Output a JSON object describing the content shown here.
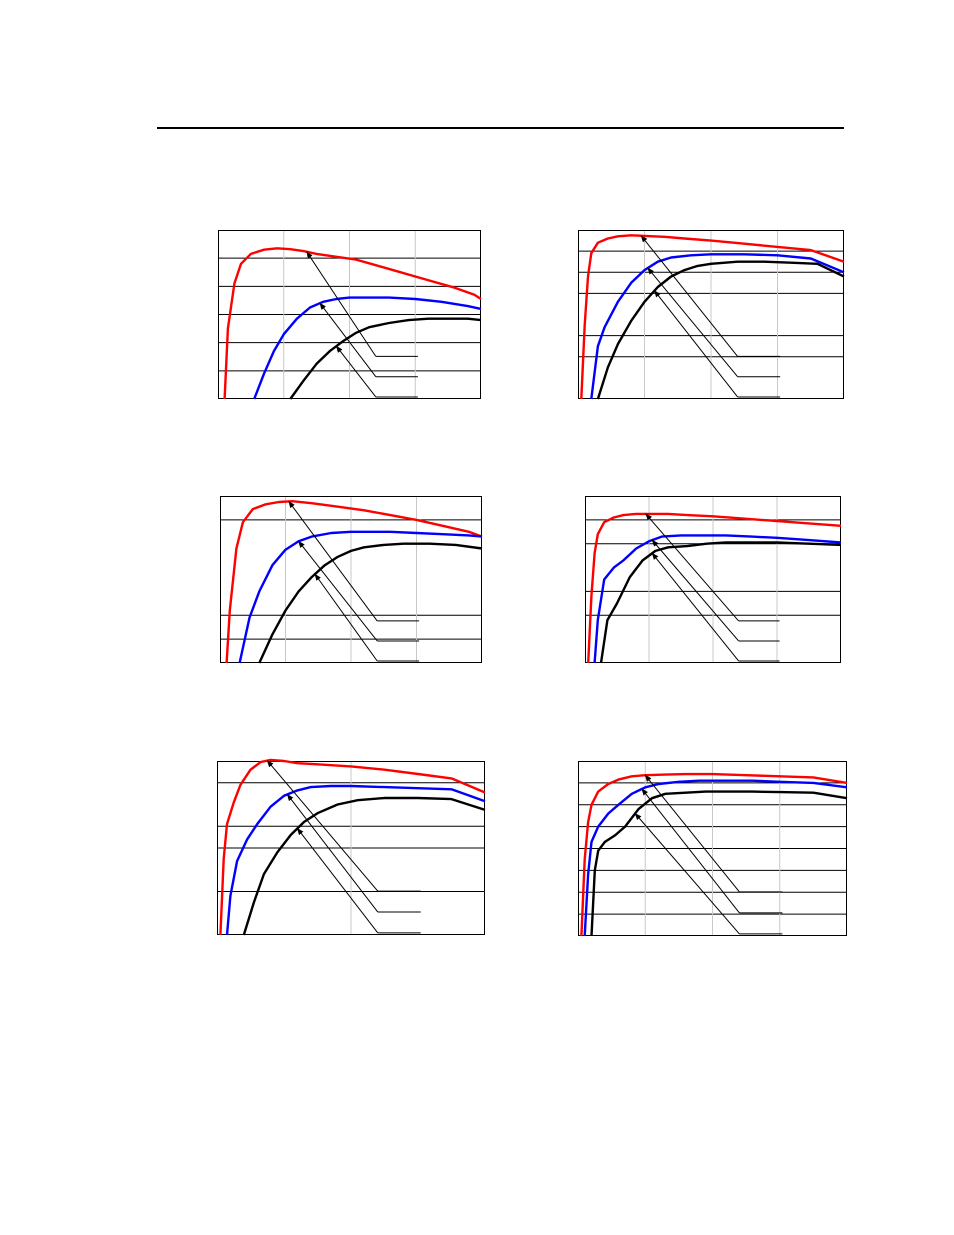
{
  "page": {
    "header_rule": true
  },
  "colors": {
    "series_a": "#ff0000",
    "series_b": "#0000ff",
    "series_c": "#000000",
    "grid": "#000000",
    "frame": "#000000"
  },
  "chart_data": [
    {
      "type": "line",
      "title": "",
      "xlabel": "",
      "ylabel": "",
      "xlim": [
        0,
        4
      ],
      "ylim": [
        0,
        6
      ],
      "h_grid": [
        1,
        2,
        3,
        4,
        5
      ],
      "v_grid": [
        1,
        2,
        3
      ],
      "series": [
        {
          "color": "#ff0000",
          "x": [
            0.1,
            0.15,
            0.25,
            0.35,
            0.5,
            0.7,
            0.9,
            1.1,
            1.3,
            1.5,
            1.8,
            2.1,
            2.4,
            2.7,
            3.0,
            3.3,
            3.6,
            3.9,
            4.0
          ],
          "y": [
            0,
            2.5,
            4.1,
            4.8,
            5.15,
            5.3,
            5.35,
            5.32,
            5.25,
            5.15,
            5.05,
            4.95,
            4.75,
            4.55,
            4.35,
            4.15,
            3.95,
            3.7,
            3.55
          ]
        },
        {
          "color": "#0000ff",
          "x": [
            0.55,
            0.7,
            0.85,
            1.0,
            1.2,
            1.4,
            1.6,
            1.8,
            2.0,
            2.2,
            2.6,
            3.0,
            3.4,
            3.8,
            4.0
          ],
          "y": [
            0,
            0.9,
            1.7,
            2.3,
            2.85,
            3.25,
            3.45,
            3.55,
            3.6,
            3.6,
            3.6,
            3.55,
            3.45,
            3.3,
            3.2
          ]
        },
        {
          "color": "#000000",
          "x": [
            1.1,
            1.3,
            1.5,
            1.7,
            1.9,
            2.1,
            2.3,
            2.6,
            2.9,
            3.2,
            3.5,
            3.8,
            4.0
          ],
          "y": [
            0,
            0.65,
            1.25,
            1.7,
            2.05,
            2.35,
            2.55,
            2.7,
            2.8,
            2.85,
            2.85,
            2.85,
            2.8
          ]
        }
      ],
      "arrows": [
        {
          "series": 0,
          "x": 1.35
        },
        {
          "series": 1,
          "x": 1.55
        },
        {
          "series": 2,
          "x": 1.8
        }
      ],
      "callout_lines": 3
    },
    {
      "type": "line",
      "title": "",
      "xlabel": "",
      "ylabel": "",
      "xlim": [
        0,
        4
      ],
      "ylim": [
        0,
        8
      ],
      "h_grid": [
        2,
        3,
        5,
        6,
        7
      ],
      "v_grid": [
        1,
        2,
        3
      ],
      "series": [
        {
          "color": "#ff0000",
          "x": [
            0.05,
            0.1,
            0.15,
            0.2,
            0.3,
            0.45,
            0.6,
            0.8,
            1.0,
            1.3,
            1.6,
            2.0,
            2.5,
            3.0,
            3.5,
            4.0
          ],
          "y": [
            0,
            3.5,
            5.8,
            6.9,
            7.4,
            7.6,
            7.7,
            7.75,
            7.72,
            7.68,
            7.6,
            7.5,
            7.35,
            7.2,
            7.05,
            6.5
          ]
        },
        {
          "color": "#0000ff",
          "x": [
            0.2,
            0.3,
            0.4,
            0.6,
            0.8,
            1.0,
            1.2,
            1.4,
            1.7,
            2.0,
            2.5,
            3.0,
            3.5,
            4.0
          ],
          "y": [
            0,
            2.5,
            3.4,
            4.6,
            5.5,
            6.1,
            6.5,
            6.7,
            6.8,
            6.85,
            6.85,
            6.8,
            6.65,
            6.0
          ]
        },
        {
          "color": "#000000",
          "x": [
            0.3,
            0.45,
            0.6,
            0.8,
            1.0,
            1.2,
            1.4,
            1.6,
            1.8,
            2.0,
            2.4,
            2.8,
            3.2,
            3.6,
            4.0
          ],
          "y": [
            0,
            1.5,
            2.6,
            3.7,
            4.6,
            5.3,
            5.8,
            6.1,
            6.3,
            6.4,
            6.5,
            6.5,
            6.45,
            6.4,
            5.8
          ]
        }
      ],
      "arrows": [
        {
          "series": 0,
          "x": 0.95
        },
        {
          "series": 1,
          "x": 1.05
        },
        {
          "series": 2,
          "x": 1.15
        }
      ],
      "callout_lines": 3
    },
    {
      "type": "line",
      "title": "",
      "xlabel": "",
      "ylabel": "",
      "xlim": [
        0,
        4
      ],
      "ylim": [
        0,
        7
      ],
      "h_grid": [
        1,
        2,
        6
      ],
      "v_grid": [
        1,
        2,
        3
      ],
      "series": [
        {
          "color": "#ff0000",
          "x": [
            0.1,
            0.15,
            0.25,
            0.35,
            0.5,
            0.7,
            0.9,
            1.1,
            1.4,
            1.8,
            2.2,
            2.6,
            3.0,
            3.4,
            3.8,
            4.0
          ],
          "y": [
            0,
            2.2,
            4.8,
            5.9,
            6.45,
            6.65,
            6.75,
            6.78,
            6.7,
            6.55,
            6.4,
            6.2,
            6.0,
            5.75,
            5.5,
            5.3
          ]
        },
        {
          "color": "#0000ff",
          "x": [
            0.3,
            0.45,
            0.6,
            0.8,
            1.0,
            1.2,
            1.4,
            1.7,
            2.0,
            2.3,
            2.6,
            3.0,
            3.4,
            3.8,
            4.0
          ],
          "y": [
            0,
            1.9,
            3.0,
            4.1,
            4.75,
            5.1,
            5.3,
            5.45,
            5.5,
            5.5,
            5.5,
            5.45,
            5.4,
            5.35,
            5.3
          ]
        },
        {
          "color": "#000000",
          "x": [
            0.6,
            0.8,
            1.0,
            1.2,
            1.4,
            1.6,
            1.8,
            2.0,
            2.2,
            2.5,
            2.8,
            3.2,
            3.6,
            4.0
          ],
          "y": [
            0,
            1.2,
            2.2,
            3.0,
            3.6,
            4.1,
            4.45,
            4.7,
            4.85,
            4.95,
            5.0,
            5.0,
            4.95,
            4.8
          ]
        }
      ],
      "arrows": [
        {
          "series": 0,
          "x": 1.05
        },
        {
          "series": 1,
          "x": 1.2
        },
        {
          "series": 2,
          "x": 1.45
        }
      ],
      "callout_lines": 4
    },
    {
      "type": "line",
      "title": "",
      "xlabel": "",
      "ylabel": "",
      "xlim": [
        0,
        4
      ],
      "ylim": [
        0,
        7
      ],
      "h_grid": [
        2,
        3,
        5,
        6
      ],
      "v_grid": [
        1,
        2,
        3
      ],
      "series": [
        {
          "color": "#ff0000",
          "x": [
            0.05,
            0.1,
            0.15,
            0.2,
            0.3,
            0.45,
            0.6,
            0.8,
            1.0,
            1.3,
            1.6,
            2.0,
            2.5,
            3.0,
            3.5,
            4.0
          ],
          "y": [
            0,
            2.8,
            4.6,
            5.4,
            5.9,
            6.1,
            6.2,
            6.25,
            6.25,
            6.25,
            6.2,
            6.15,
            6.05,
            5.95,
            5.85,
            5.75
          ]
        },
        {
          "color": "#0000ff",
          "x": [
            0.15,
            0.2,
            0.3,
            0.45,
            0.6,
            0.8,
            1.0,
            1.2,
            1.5,
            1.8,
            2.2,
            2.6,
            3.0,
            3.5,
            4.0
          ],
          "y": [
            0,
            1.8,
            3.5,
            4.0,
            4.3,
            4.8,
            5.1,
            5.3,
            5.35,
            5.35,
            5.35,
            5.3,
            5.25,
            5.15,
            5.05
          ]
        },
        {
          "color": "#000000",
          "x": [
            0.25,
            0.35,
            0.5,
            0.7,
            0.9,
            1.1,
            1.3,
            1.6,
            1.9,
            2.2,
            2.6,
            3.0,
            3.5,
            4.0
          ],
          "y": [
            0,
            1.8,
            2.5,
            3.6,
            4.3,
            4.7,
            4.85,
            4.9,
            5.0,
            5.05,
            5.05,
            5.05,
            5.0,
            4.95
          ]
        }
      ],
      "arrows": [
        {
          "series": 0,
          "x": 0.95
        },
        {
          "series": 1,
          "x": 1.05
        },
        {
          "series": 2,
          "x": 1.05
        }
      ],
      "callout_lines": 3
    },
    {
      "type": "line",
      "title": "",
      "xlabel": "",
      "ylabel": "",
      "xlim": [
        0,
        4
      ],
      "ylim": [
        0,
        8
      ],
      "h_grid": [
        2,
        4,
        5,
        7
      ],
      "v_grid": [
        2
      ],
      "series": [
        {
          "color": "#ff0000",
          "x": [
            0.05,
            0.1,
            0.15,
            0.25,
            0.35,
            0.5,
            0.65,
            0.8,
            1.0,
            1.2,
            1.5,
            2.0,
            2.5,
            3.0,
            3.5,
            4.0
          ],
          "y": [
            0,
            3.5,
            5.1,
            6.1,
            6.9,
            7.6,
            7.95,
            8.05,
            8.0,
            7.9,
            7.85,
            7.75,
            7.6,
            7.4,
            7.2,
            6.55
          ]
        },
        {
          "color": "#0000ff",
          "x": [
            0.15,
            0.2,
            0.3,
            0.45,
            0.6,
            0.8,
            1.0,
            1.2,
            1.4,
            1.7,
            2.0,
            2.5,
            3.0,
            3.5,
            4.0
          ],
          "y": [
            0,
            1.8,
            3.4,
            4.4,
            5.1,
            5.9,
            6.4,
            6.65,
            6.8,
            6.85,
            6.85,
            6.8,
            6.75,
            6.7,
            6.15
          ]
        },
        {
          "color": "#000000",
          "x": [
            0.4,
            0.55,
            0.7,
            0.9,
            1.1,
            1.3,
            1.5,
            1.8,
            2.1,
            2.5,
            3.0,
            3.5,
            4.0
          ],
          "y": [
            0,
            1.5,
            2.8,
            3.8,
            4.6,
            5.2,
            5.6,
            6.0,
            6.2,
            6.3,
            6.3,
            6.25,
            5.75
          ]
        }
      ],
      "arrows": [
        {
          "series": 0,
          "x": 0.75
        },
        {
          "series": 1,
          "x": 1.05
        },
        {
          "series": 2,
          "x": 1.2
        }
      ],
      "callout_lines": 3
    },
    {
      "type": "line",
      "title": "",
      "xlabel": "",
      "ylabel": "",
      "xlim": [
        0,
        4
      ],
      "ylim": [
        0,
        8
      ],
      "h_grid": [
        1,
        2,
        3,
        4,
        5,
        6,
        7
      ],
      "v_grid": [
        1,
        2,
        3
      ],
      "series": [
        {
          "color": "#ff0000",
          "x": [
            0.05,
            0.1,
            0.15,
            0.2,
            0.3,
            0.45,
            0.6,
            0.8,
            1.0,
            1.3,
            1.6,
            2.0,
            2.5,
            3.0,
            3.5,
            4.0
          ],
          "y": [
            0,
            3.5,
            5.2,
            6.0,
            6.6,
            6.95,
            7.15,
            7.3,
            7.35,
            7.38,
            7.4,
            7.4,
            7.35,
            7.3,
            7.25,
            7.0
          ]
        },
        {
          "color": "#0000ff",
          "x": [
            0.1,
            0.15,
            0.2,
            0.3,
            0.45,
            0.6,
            0.8,
            1.0,
            1.2,
            1.5,
            1.8,
            2.2,
            2.6,
            3.0,
            3.5,
            4.0
          ],
          "y": [
            0,
            2.8,
            4.3,
            5.0,
            5.6,
            6.0,
            6.5,
            6.8,
            6.95,
            7.05,
            7.1,
            7.1,
            7.1,
            7.05,
            7.0,
            6.8
          ]
        },
        {
          "color": "#000000",
          "x": [
            0.2,
            0.25,
            0.3,
            0.4,
            0.55,
            0.7,
            0.9,
            1.1,
            1.3,
            1.6,
            1.9,
            2.2,
            2.6,
            3.0,
            3.5,
            4.0
          ],
          "y": [
            0,
            3.0,
            3.9,
            4.3,
            4.6,
            5.0,
            5.8,
            6.3,
            6.5,
            6.55,
            6.6,
            6.6,
            6.6,
            6.58,
            6.55,
            6.3
          ]
        }
      ],
      "arrows": [
        {
          "series": 0,
          "x": 1.0
        },
        {
          "series": 1,
          "x": 0.95
        },
        {
          "series": 2,
          "x": 0.85
        }
      ],
      "callout_lines": 3
    }
  ]
}
